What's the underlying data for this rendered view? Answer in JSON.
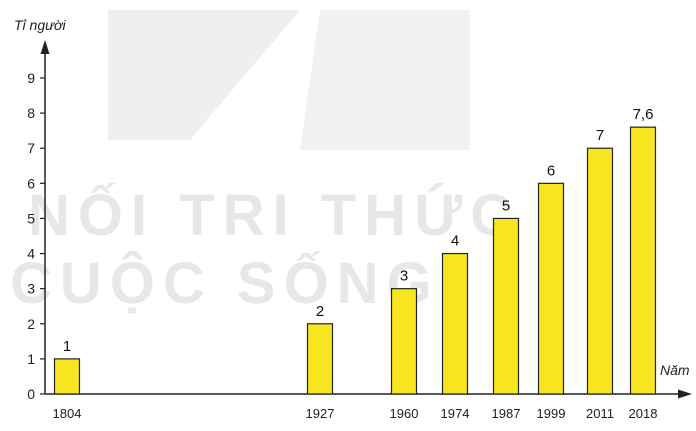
{
  "chart_data": {
    "type": "bar",
    "categories": [
      "1804",
      "1927",
      "1960",
      "1974",
      "1987",
      "1999",
      "2011",
      "2018"
    ],
    "values": [
      1,
      2,
      3,
      4,
      5,
      6,
      7,
      7.6
    ],
    "value_labels": [
      "1",
      "2",
      "3",
      "4",
      "5",
      "6",
      "7",
      "7,6"
    ],
    "ylabel": "Tỉ người",
    "xlabel": "Năm",
    "ylim": [
      0,
      9
    ],
    "y_ticks": [
      "0",
      "1",
      "2",
      "3",
      "4",
      "5",
      "6",
      "7",
      "8",
      "9"
    ],
    "grid": false,
    "bar_color": "#f7e51f",
    "bar_edge_color": "#222222"
  },
  "watermark": {
    "line1": "NỐI TRI THỨC",
    "line2": "CUỘC SỐNG"
  }
}
